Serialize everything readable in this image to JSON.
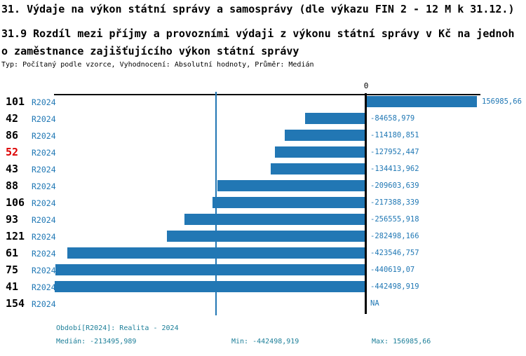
{
  "title": "31. Výdaje na výkon státní správy a samosprávy (dle výkazu FIN 2 - 12 M k 31.12.)",
  "subtitle_lines": [
    "31.9 Rozdíl mezi příjmy a provozními výdaji z výkonu státní správy v Kč na jednoh",
    "o zaměstnance zajišťujícího výkon státní správy"
  ],
  "meta_line": "Typ: Počítaný podle vzorce, Vyhodnocení: Absolutní hodnoty, Průměr: Medián",
  "colors": {
    "bar": "#2277b4",
    "label_blue": "#1f77b4",
    "footer_teal": "#1d7f99",
    "highlight_red": "#dd0000",
    "axis_black": "#000000"
  },
  "chart_data": {
    "type": "bar",
    "orientation": "horizontal",
    "axis_zero_label": "0",
    "median_value": -213495.989,
    "xlim": [
      -460000,
      170000
    ],
    "rows": [
      {
        "id": "101",
        "period": "R2024",
        "value": 156985.66,
        "label": "156985,66",
        "highlight": false
      },
      {
        "id": "42",
        "period": "R2024",
        "value": -84658.979,
        "label": "-84658,979",
        "highlight": false
      },
      {
        "id": "86",
        "period": "R2024",
        "value": -114180.851,
        "label": "-114180,851",
        "highlight": false
      },
      {
        "id": "52",
        "period": "R2024",
        "value": -127952.447,
        "label": "-127952,447",
        "highlight": true
      },
      {
        "id": "43",
        "period": "R2024",
        "value": -134413.962,
        "label": "-134413,962",
        "highlight": false
      },
      {
        "id": "88",
        "period": "R2024",
        "value": -209603.639,
        "label": "-209603,639",
        "highlight": false
      },
      {
        "id": "106",
        "period": "R2024",
        "value": -217388.339,
        "label": "-217388,339",
        "highlight": false
      },
      {
        "id": "93",
        "period": "R2024",
        "value": -256555.918,
        "label": "-256555,918",
        "highlight": false
      },
      {
        "id": "121",
        "period": "R2024",
        "value": -282498.166,
        "label": "-282498,166",
        "highlight": false
      },
      {
        "id": "61",
        "period": "R2024",
        "value": -423546.757,
        "label": "-423546,757",
        "highlight": false
      },
      {
        "id": "75",
        "period": "R2024",
        "value": -440619.07,
        "label": "-440619,07",
        "highlight": false
      },
      {
        "id": "41",
        "period": "R2024",
        "value": -442498.919,
        "label": "-442498,919",
        "highlight": false
      },
      {
        "id": "154",
        "period": "R2024",
        "value": null,
        "label": "NA",
        "highlight": false
      }
    ]
  },
  "footer": {
    "period_line": "Období[R2024]: Realita - 2024",
    "median": "Medián: -213495,989",
    "min": "Min: -442498,919",
    "max": "Max: 156985,66"
  }
}
